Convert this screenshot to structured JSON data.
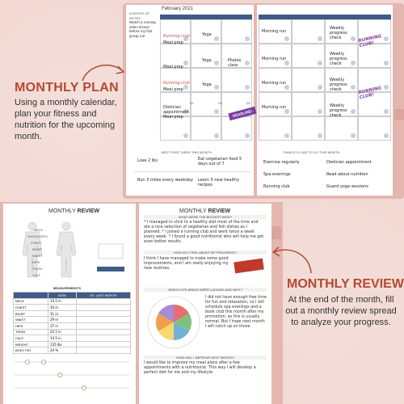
{
  "headings": {
    "monthly_plan_title": "MONTHLY PLAN",
    "monthly_plan_desc": "Using a monthly calendar, plan your fitness and nutrition for the upcoming month.",
    "monthly_review_title": "MONTHLY REVIEW",
    "monthly_review_desc": "At the end of the month, fill out a monthly review spread to analyze your progress."
  },
  "top_planner": {
    "notes_header": "A MONTH OF NOTES",
    "notes_text": "Watch a running video lesson before my first group run",
    "month": "February 2021",
    "calendar_entries": {
      "running_club_1": "Running club",
      "meal_prep_1": "Meal prep",
      "yoga_1": "Yoga",
      "meal_prep_2": "Meal prep",
      "yoga_2": "Yoga",
      "pilates": "Pilates class",
      "running_club_2": "Running club",
      "meal_prep_3": "Meal prep",
      "yoga_3": "Yoga",
      "dietician": "Dietician appointment",
      "meal_prep_4": "Meal prep",
      "morning_run_1": "Morning run",
      "morning_run_2": "Morning run",
      "morning_run_3": "Morning run",
      "morning_run_4": "Morning run",
      "weekly_check_1": "Weekly progress check",
      "weekly_check_2": "Weekly progress check",
      "weekly_check_3": "Weekly progress check",
      "weekly_check_4": "Weekly progress check",
      "sticker_1": "RUNNING CLUB!",
      "sticker_2": "RUNNING CLUB!",
      "deadline": "DEADLINE!"
    },
    "day_numbers": [
      "22",
      "23",
      "24"
    ],
    "goals_header": "BEST FIRST WEEK THIS MONTH",
    "goals": [
      "Lose 2 lbs",
      "Eat vegetarian food 5 days out of 7",
      "Run 3 miles every weekday",
      "Learn 5 new healthy recipes"
    ],
    "todo_header": "THINGS I'D LIKE TO DO THIS MONTH",
    "todo": [
      "Exercise regularly",
      "Dietician appointment",
      "Spa evenings",
      "Read about nutrition",
      "Running club",
      "Guard yoga sessions"
    ]
  },
  "bottom_review": {
    "page_title_l": "MONTHLY",
    "page_title_l2": "REVIEW",
    "page_title_r": "MONTHLY",
    "page_title_r2": "REVIEW",
    "body_labels": [
      "NECK",
      "SHOULDERS",
      "CHEST",
      "BICEP",
      "WAIST",
      "HIPS",
      "THIGH",
      "CALF"
    ],
    "measurements_header": "MEASUREMENTS",
    "table_headers": [
      "",
      "NOW",
      "VS. LAST MONTH"
    ],
    "table_rows": [
      [
        "NECK",
        "14.5 in",
        ""
      ],
      [
        "CHEST",
        "34 in",
        ""
      ],
      [
        "BICEP",
        "11 in",
        ""
      ],
      [
        "WAIST",
        "29 in",
        ""
      ],
      [
        "HIPS",
        "37 in",
        ""
      ],
      [
        "THIGH",
        "22.5 in",
        ""
      ],
      [
        "CALF",
        "14.5 in",
        ""
      ],
      [
        "WEIGHT",
        "135 lbs",
        ""
      ],
      [
        "BODY FAT",
        "24 %",
        ""
      ]
    ],
    "q1": "WHAT WERE THE BIGGEST WINS?",
    "a1": "* I managed to stick to a healthy diet most of the time and ate a nice selection of vegetarian and fish dishes as I planned. * I joined a running club and went twice a week every week. * I found a good nutritionist who will help me get even better results.",
    "q2": "HOW DO I FEEL ABOUT MY PROGRESS?",
    "a2": "I think I have managed to make some good improvements, and I am really enjoying my new routines.",
    "q3": "WHICH LIFE AREAS WERE LACKING AND WHY?",
    "a3": "I did not have enough free time for fun and relaxation, so I will schedule spa evenings and a book club this month after my promotion, as this is usually normal. But I hope next month I will catch up on those.",
    "q4": "HOW WILL I IMPROVE NEXT MONTH?",
    "a4": "I would like to improve my meal plans after a few appointments with a nutritionist. This way I will develop a perfect diet for me and my lifestyle."
  }
}
